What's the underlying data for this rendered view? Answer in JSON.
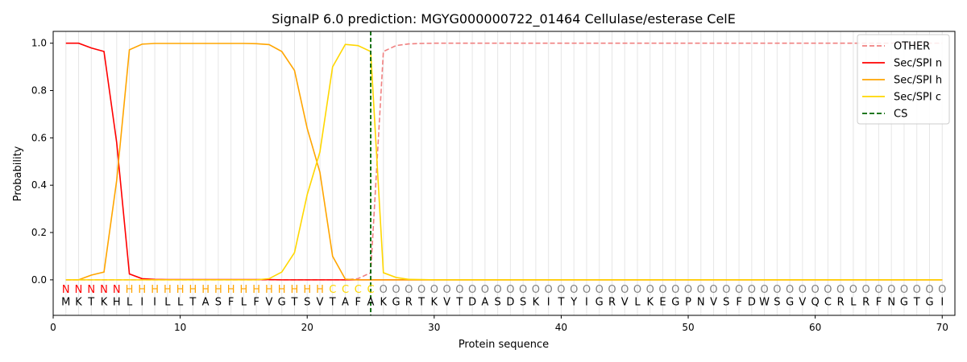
{
  "chart_data": {
    "type": "line",
    "title": "SignalP 6.0 prediction: MGYG000000722_01464 Cellulase/esterase CelE",
    "xlabel": "Protein sequence",
    "ylabel": "Probability",
    "xlim": [
      0,
      71
    ],
    "ylim": [
      -0.15,
      1.05
    ],
    "xticks": [
      0,
      10,
      20,
      30,
      40,
      50,
      60,
      70
    ],
    "yticks": [
      0.0,
      0.2,
      0.4,
      0.6,
      0.8,
      1.0
    ],
    "xtick_labels": [
      "0",
      "10",
      "20",
      "30",
      "40",
      "50",
      "60",
      "70"
    ],
    "ytick_labels": [
      "0.0",
      "0.2",
      "0.4",
      "0.6",
      "0.8",
      "1.0"
    ],
    "legend_position": "top-right",
    "sequence": "MKTKHLIILLTASFLFVGTSVTAFAKGRTKVTDASDSKITYIGRVLKEGPNVSFDWSGVQCRLRFNGTGI",
    "labels": "NNNNNHHHHHHHHHHHHHHHHCCCCOOOOOOOOOOOOOOOOOOOOOOOOOOOOOOOOOOOOOOOOOOOOO",
    "label_colors": {
      "N": "#ff0000",
      "H": "#ffa500",
      "C": "#ffd700",
      "O": "#808080"
    },
    "cleavage_site": 25,
    "series": [
      {
        "name": "OTHER",
        "color": "#f08080",
        "dash": "dashed",
        "values": [
          0,
          0,
          0,
          0,
          0,
          0,
          0,
          0,
          0,
          0,
          0,
          0,
          0,
          0,
          0,
          0,
          0,
          0,
          0,
          0,
          0,
          0,
          0,
          0.005,
          0.03,
          0.965,
          0.99,
          0.997,
          0.999,
          1,
          1,
          1,
          1,
          1,
          1,
          1,
          1,
          1,
          1,
          1,
          1,
          1,
          1,
          1,
          1,
          1,
          1,
          1,
          1,
          1,
          1,
          1,
          1,
          1,
          1,
          1,
          1,
          1,
          1,
          1,
          1,
          1,
          1,
          1,
          1,
          1,
          1,
          1,
          1,
          1
        ]
      },
      {
        "name": "Sec/SPI n",
        "color": "#ff0000",
        "dash": "solid",
        "values": [
          1,
          1,
          0.98,
          0.965,
          0.58,
          0.025,
          0.005,
          0.002,
          0.001,
          0.001,
          0.001,
          0.001,
          0.001,
          0.001,
          0.001,
          0.001,
          0.001,
          0,
          0,
          0,
          0,
          0,
          0,
          0,
          0,
          0,
          0,
          0,
          0,
          0,
          0,
          0,
          0,
          0,
          0,
          0,
          0,
          0,
          0,
          0,
          0,
          0,
          0,
          0,
          0,
          0,
          0,
          0,
          0,
          0,
          0,
          0,
          0,
          0,
          0,
          0,
          0,
          0,
          0,
          0,
          0,
          0,
          0,
          0,
          0,
          0,
          0,
          0,
          0,
          0
        ]
      },
      {
        "name": "Sec/SPI h",
        "color": "#ffa500",
        "dash": "solid",
        "values": [
          0,
          0,
          0.02,
          0.033,
          0.42,
          0.972,
          0.996,
          0.999,
          0.999,
          0.999,
          0.999,
          0.999,
          0.999,
          0.999,
          0.999,
          0.998,
          0.994,
          0.965,
          0.885,
          0.64,
          0.455,
          0.1,
          0.003,
          0,
          0,
          0,
          0,
          0,
          0,
          0,
          0,
          0,
          0,
          0,
          0,
          0,
          0,
          0,
          0,
          0,
          0,
          0,
          0,
          0,
          0,
          0,
          0,
          0,
          0,
          0,
          0,
          0,
          0,
          0,
          0,
          0,
          0,
          0,
          0,
          0,
          0,
          0,
          0,
          0,
          0,
          0,
          0,
          0,
          0,
          0
        ]
      },
      {
        "name": "Sec/SPI c",
        "color": "#ffd700",
        "dash": "solid",
        "values": [
          0,
          0,
          0,
          0,
          0,
          0,
          0,
          0,
          0,
          0,
          0,
          0,
          0,
          0,
          0,
          0,
          0.005,
          0.033,
          0.115,
          0.36,
          0.54,
          0.9,
          0.995,
          0.99,
          0.965,
          0.03,
          0.01,
          0.002,
          0.001,
          0,
          0,
          0,
          0,
          0,
          0,
          0,
          0,
          0,
          0,
          0,
          0,
          0,
          0,
          0,
          0,
          0,
          0,
          0,
          0,
          0,
          0,
          0,
          0,
          0,
          0,
          0,
          0,
          0,
          0,
          0,
          0,
          0,
          0,
          0,
          0,
          0,
          0,
          0,
          0,
          0
        ]
      }
    ],
    "cs_legend": {
      "name": "CS",
      "color": "#006400",
      "dash": "dashed"
    }
  }
}
